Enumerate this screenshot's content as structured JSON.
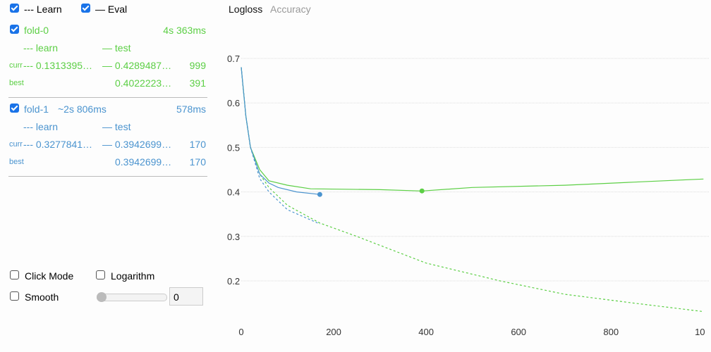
{
  "legend": {
    "learn_label": "--- Learn",
    "eval_label": "— Eval",
    "learn_checked": true,
    "eval_checked": true
  },
  "folds": [
    {
      "name": "fold-0",
      "checked": true,
      "elapsed": "",
      "time": "4s 363ms",
      "color": "#5ccf45",
      "learn_header": "--- learn",
      "test_header": "— test",
      "curr_label": "curr",
      "curr_learn": "--- 0.1313395…",
      "curr_test": "— 0.4289487…",
      "curr_iter": "999",
      "best_label": "best",
      "best_test": "0.4022223…",
      "best_iter": "391"
    },
    {
      "name": "fold-1",
      "checked": true,
      "elapsed": "~2s 806ms",
      "time": "578ms",
      "color": "#4b94cf",
      "learn_header": "--- learn",
      "test_header": "— test",
      "curr_label": "curr",
      "curr_learn": "--- 0.3277841…",
      "curr_test": "— 0.3942699…",
      "curr_iter": "170",
      "best_label": "best",
      "best_test": "0.3942699…",
      "best_iter": "170"
    }
  ],
  "controls": {
    "click_mode": "Click Mode",
    "logarithm": "Logarithm",
    "smooth": "Smooth",
    "smooth_value": "0",
    "click_mode_checked": false,
    "logarithm_checked": false,
    "smooth_checked": false
  },
  "tabs": {
    "active": "Logloss",
    "inactive": "Accuracy"
  },
  "chart_data": {
    "type": "line",
    "xlim": [
      0,
      1000
    ],
    "ylim": [
      0.1,
      0.7
    ],
    "x_ticks": [
      "0",
      "200",
      "400",
      "600",
      "800",
      "10"
    ],
    "y_ticks": [
      "0.7",
      "0.6",
      "0.5",
      "0.4",
      "0.3",
      "0.2"
    ],
    "grid": true,
    "series": [
      {
        "name": "fold-0 learn",
        "color": "#5ccf45",
        "dash": true,
        "x": [
          0,
          10,
          20,
          40,
          60,
          100,
          170,
          250,
          400,
          560,
          700,
          850,
          1000
        ],
        "y": [
          0.68,
          0.57,
          0.5,
          0.44,
          0.41,
          0.37,
          0.33,
          0.3,
          0.24,
          0.2,
          0.17,
          0.15,
          0.131
        ]
      },
      {
        "name": "fold-0 test",
        "color": "#5ccf45",
        "dash": false,
        "x": [
          0,
          10,
          20,
          40,
          60,
          100,
          150,
          300,
          391,
          500,
          700,
          850,
          1000
        ],
        "y": [
          0.68,
          0.57,
          0.5,
          0.45,
          0.425,
          0.415,
          0.407,
          0.405,
          0.402,
          0.41,
          0.415,
          0.422,
          0.429
        ],
        "best": [
          391,
          0.4022
        ]
      },
      {
        "name": "fold-1 learn",
        "color": "#4b94cf",
        "dash": true,
        "x": [
          0,
          10,
          20,
          40,
          60,
          100,
          170
        ],
        "y": [
          0.68,
          0.57,
          0.5,
          0.43,
          0.4,
          0.36,
          0.328
        ]
      },
      {
        "name": "fold-1 test",
        "color": "#4b94cf",
        "dash": false,
        "x": [
          0,
          10,
          20,
          40,
          60,
          80,
          120,
          170
        ],
        "y": [
          0.68,
          0.57,
          0.5,
          0.44,
          0.42,
          0.41,
          0.4,
          0.3943
        ],
        "best": [
          170,
          0.3943
        ]
      }
    ]
  }
}
